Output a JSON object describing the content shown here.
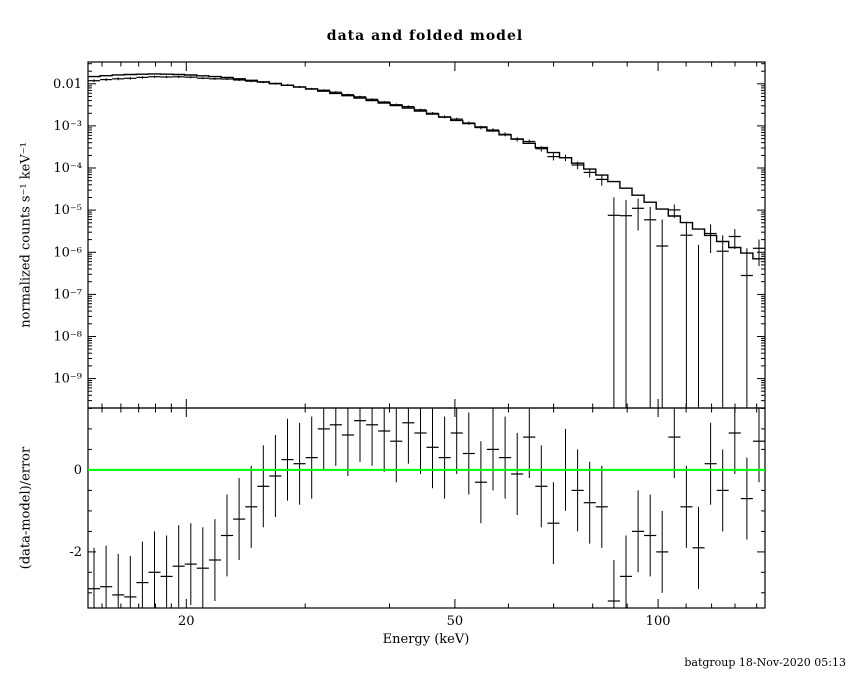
{
  "title": "data and folded model",
  "footer": "batgroup 18-Nov-2020 05:13",
  "chart_data": {
    "type": "line",
    "subtype": "x-ray spectrum histogram with error bars and residual panel",
    "title": "data and folded model",
    "xlabel": "Energy (keV)",
    "xscale": "log",
    "xlim": [
      14.3,
      144
    ],
    "xticks": [
      {
        "value": 20,
        "label": "20"
      },
      {
        "value": 50,
        "label": "50"
      },
      {
        "value": 100,
        "label": "100"
      }
    ],
    "xminor": [
      15,
      16,
      17,
      18,
      19,
      30,
      40,
      60,
      70,
      80,
      90,
      110,
      120,
      130,
      140
    ],
    "panels": [
      {
        "name": "spectrum",
        "ylabel": "normalized counts s⁻¹ keV⁻¹",
        "yscale": "log",
        "ylim": [
          2e-10,
          0.033
        ],
        "yticks": [
          {
            "value": 0.01,
            "label": "0.01"
          },
          {
            "value": 0.001,
            "label": "10⁻³"
          },
          {
            "value": 0.0001,
            "label": "10⁻⁴"
          },
          {
            "value": 1e-05,
            "label": "10⁻⁵"
          },
          {
            "value": 1e-06,
            "label": "10⁻⁶"
          },
          {
            "value": 1e-07,
            "label": "10⁻⁷"
          },
          {
            "value": 1e-08,
            "label": "10⁻⁸"
          },
          {
            "value": 1e-09,
            "label": "10⁻⁹"
          }
        ],
        "model_curve": {
          "energy_keV": [
            14.3,
            16,
            18,
            20,
            23,
            26,
            30,
            34,
            38,
            43,
            48,
            54,
            60,
            67,
            74,
            82,
            90,
            98,
            107,
            117,
            128,
            144
          ],
          "flux": [
            0.0145,
            0.0165,
            0.0172,
            0.0165,
            0.0142,
            0.0112,
            0.008,
            0.0056,
            0.0039,
            0.0026,
            0.00165,
            0.001,
            0.00058,
            0.00031,
            0.00016,
            7.2e-05,
            3.2e-05,
            1.45e-05,
            6.5e-06,
            3e-06,
            1.45e-06,
            6e-07
          ]
        },
        "relative_error": {
          "energy_keV": [
            14.3,
            20,
            30,
            40,
            50,
            60,
            70,
            80,
            88,
            95,
            102,
            110,
            118,
            128,
            144
          ],
          "rel": [
            0.07,
            0.05,
            0.055,
            0.065,
            0.085,
            0.11,
            0.15,
            0.21,
            0.28,
            0.36,
            0.44,
            0.55,
            0.7,
            0.88,
            1.15
          ]
        }
      },
      {
        "name": "residuals",
        "ylabel": "(data-model)/error",
        "yscale": "linear",
        "ylim": [
          -3.37,
          1.51
        ],
        "yticks": [
          {
            "value": -2,
            "label": "-2"
          },
          {
            "value": 0,
            "label": "0"
          }
        ],
        "error_sigma": 1,
        "zero_line_color": "#00ff00"
      }
    ],
    "bins": {
      "count": 56,
      "e_min_keV": 14.3,
      "e_max_keV": 144
    },
    "residual_sigma": [
      -2.9,
      -2.85,
      -3.05,
      -3.1,
      -2.75,
      -2.5,
      -2.6,
      -2.35,
      -2.3,
      -2.4,
      -2.2,
      -1.6,
      -1.2,
      -0.9,
      -0.4,
      -0.15,
      0.25,
      0.15,
      0.3,
      1.0,
      1.1,
      0.85,
      1.2,
      1.1,
      0.95,
      0.7,
      1.15,
      0.9,
      0.55,
      0.3,
      0.9,
      0.4,
      -0.3,
      0.5,
      0.3,
      -0.1,
      0.8,
      -0.4,
      -1.3,
      0.0,
      -0.5,
      -0.8,
      -0.9,
      -3.2,
      -2.6,
      -1.5,
      -1.6,
      -2.0,
      0.8,
      -0.9,
      -1.9,
      0.15,
      -0.5,
      0.9,
      -0.7,
      0.7
    ],
    "colors": {
      "data": "#000000",
      "frame": "#000000",
      "zero_line": "#00ff00",
      "background": "#ffffff"
    }
  }
}
